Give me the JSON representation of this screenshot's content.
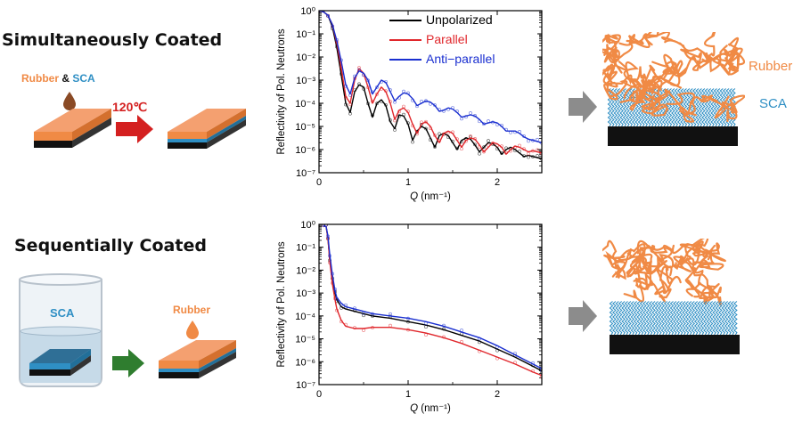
{
  "rows": [
    {
      "title": "Simultaneously Coated",
      "materials": {
        "rubber": "Rubber",
        "amp": "&",
        "sca": "SCA"
      },
      "temperature": "120℃"
    },
    {
      "title": "Sequentially Coated",
      "beaker_label": "SCA",
      "drop_label": "Rubber"
    }
  ],
  "structure_labels": {
    "rubber": "Rubber",
    "sca": "SCA"
  },
  "colors": {
    "rubber": "#f08a45",
    "sca": "#2f8fc4",
    "substrate": "#111111",
    "arrow_red": "#d42020",
    "arrow_green": "#2f7d2f",
    "arrow_gray": "#8c8c8c",
    "unpolarized": "#000000",
    "parallel": "#e0262b",
    "antiparallel": "#1a2fd0"
  },
  "chart_data": [
    {
      "type": "line",
      "xlabel_var": "Q",
      "xlabel_unit": "(nm⁻¹)",
      "ylabel": "Reflectivity of Pol. Neutrons",
      "xlim": [
        0,
        2.5
      ],
      "ylim_log10": [
        -7,
        0
      ],
      "x_ticks": [
        "0",
        "1",
        "2"
      ],
      "y_ticks": [
        "10⁰",
        "10⁻¹",
        "10⁻²",
        "10⁻³",
        "10⁻⁴",
        "10⁻⁵",
        "10⁻⁶",
        "10⁻⁷"
      ],
      "legend": [
        "Unpolarized",
        "Parallel",
        "Anti−parallel"
      ],
      "series": [
        {
          "name": "Unpolarized",
          "x": [
            0,
            0.05,
            0.1,
            0.15,
            0.2,
            0.25,
            0.3,
            0.35,
            0.4,
            0.45,
            0.5,
            0.55,
            0.6,
            0.65,
            0.7,
            0.75,
            0.8,
            0.85,
            0.9,
            0.95,
            1.0,
            1.05,
            1.1,
            1.15,
            1.2,
            1.25,
            1.3,
            1.35,
            1.4,
            1.45,
            1.5,
            1.55,
            1.6,
            1.65,
            1.7,
            1.75,
            1.8,
            1.85,
            1.9,
            1.95,
            2.0,
            2.05,
            2.1,
            2.15,
            2.2,
            2.25,
            2.3,
            2.35,
            2.4,
            2.45,
            2.5
          ],
          "log10y": [
            0.0,
            -0.05,
            -0.2,
            -0.7,
            -1.6,
            -2.8,
            -4.0,
            -4.4,
            -3.5,
            -3.2,
            -3.3,
            -4.0,
            -4.6,
            -4.0,
            -3.85,
            -4.1,
            -4.8,
            -5.1,
            -4.5,
            -4.55,
            -4.9,
            -5.6,
            -5.2,
            -5.0,
            -5.1,
            -5.5,
            -5.9,
            -5.4,
            -5.3,
            -5.4,
            -5.7,
            -6.0,
            -5.6,
            -5.5,
            -5.55,
            -5.8,
            -6.1,
            -5.9,
            -5.7,
            -5.75,
            -5.9,
            -6.2,
            -6.0,
            -5.9,
            -6.0,
            -6.15,
            -6.3,
            -6.25,
            -6.3,
            -6.35,
            -6.4
          ]
        },
        {
          "name": "Parallel",
          "x": [
            0,
            0.05,
            0.1,
            0.15,
            0.2,
            0.25,
            0.3,
            0.35,
            0.4,
            0.45,
            0.5,
            0.55,
            0.6,
            0.65,
            0.7,
            0.75,
            0.8,
            0.85,
            0.9,
            0.95,
            1.0,
            1.05,
            1.1,
            1.15,
            1.2,
            1.25,
            1.3,
            1.35,
            1.4,
            1.45,
            1.5,
            1.55,
            1.6,
            1.65,
            1.7,
            1.75,
            1.8,
            1.85,
            1.9,
            1.95,
            2.0,
            2.05,
            2.1,
            2.15,
            2.2,
            2.25,
            2.3,
            2.35,
            2.4,
            2.45,
            2.5
          ],
          "log10y": [
            0.0,
            -0.05,
            -0.2,
            -0.6,
            -1.4,
            -2.5,
            -3.7,
            -4.0,
            -3.0,
            -2.5,
            -2.7,
            -3.3,
            -4.0,
            -3.6,
            -3.3,
            -3.5,
            -4.0,
            -4.7,
            -4.3,
            -4.2,
            -4.4,
            -4.9,
            -5.3,
            -4.9,
            -4.8,
            -5.0,
            -5.4,
            -5.7,
            -5.3,
            -5.2,
            -5.3,
            -5.6,
            -5.9,
            -5.6,
            -5.5,
            -5.55,
            -5.8,
            -6.1,
            -5.9,
            -5.7,
            -5.75,
            -5.9,
            -6.2,
            -6.0,
            -5.85,
            -5.9,
            -6.0,
            -6.1,
            -6.05,
            -6.1,
            -6.15
          ]
        },
        {
          "name": "Anti−parallel",
          "x": [
            0,
            0.05,
            0.1,
            0.15,
            0.2,
            0.25,
            0.3,
            0.35,
            0.4,
            0.45,
            0.5,
            0.55,
            0.6,
            0.65,
            0.7,
            0.75,
            0.8,
            0.85,
            0.9,
            0.95,
            1.0,
            1.05,
            1.1,
            1.15,
            1.2,
            1.25,
            1.3,
            1.35,
            1.4,
            1.45,
            1.5,
            1.55,
            1.6,
            1.65,
            1.7,
            1.75,
            1.8,
            1.85,
            1.9,
            1.95,
            2.0,
            2.05,
            2.1,
            2.15,
            2.2,
            2.25,
            2.3,
            2.35,
            2.4,
            2.45,
            2.5
          ],
          "log10y": [
            0.0,
            -0.05,
            -0.2,
            -0.6,
            -1.3,
            -2.2,
            -3.2,
            -3.6,
            -2.9,
            -2.6,
            -2.7,
            -3.0,
            -3.6,
            -3.3,
            -3.0,
            -3.1,
            -3.5,
            -3.9,
            -3.7,
            -3.55,
            -3.6,
            -3.8,
            -4.1,
            -4.0,
            -3.9,
            -3.95,
            -4.1,
            -4.35,
            -4.3,
            -4.2,
            -4.25,
            -4.4,
            -4.6,
            -4.55,
            -4.5,
            -4.55,
            -4.7,
            -4.9,
            -4.85,
            -4.8,
            -4.85,
            -5.0,
            -5.2,
            -5.2,
            -5.2,
            -5.3,
            -5.45,
            -5.55,
            -5.6,
            -5.65,
            -5.7
          ]
        }
      ]
    },
    {
      "type": "line",
      "xlabel_var": "Q",
      "xlabel_unit": "(nm⁻¹)",
      "ylabel": "Reflectivity of Pol. Neutrons",
      "xlim": [
        0,
        2.5
      ],
      "ylim_log10": [
        -7,
        0
      ],
      "x_ticks": [
        "0",
        "1",
        "2"
      ],
      "y_ticks": [
        "10⁰",
        "10⁻¹",
        "10⁻²",
        "10⁻³",
        "10⁻⁴",
        "10⁻⁵",
        "10⁻⁶",
        "10⁻⁷"
      ],
      "legend": [],
      "series": [
        {
          "name": "Unpolarized",
          "x": [
            0.05,
            0.08,
            0.1,
            0.12,
            0.15,
            0.18,
            0.2,
            0.25,
            0.3,
            0.4,
            0.5,
            0.6,
            0.8,
            1.0,
            1.2,
            1.4,
            1.6,
            1.8,
            2.0,
            2.2,
            2.4,
            2.5
          ],
          "log10y": [
            -0.05,
            -0.1,
            -0.6,
            -1.5,
            -2.4,
            -3.0,
            -3.3,
            -3.6,
            -3.7,
            -3.8,
            -3.9,
            -4.0,
            -4.1,
            -4.25,
            -4.4,
            -4.6,
            -4.85,
            -5.1,
            -5.45,
            -5.8,
            -6.2,
            -6.4
          ]
        },
        {
          "name": "Parallel",
          "x": [
            0.05,
            0.08,
            0.1,
            0.12,
            0.15,
            0.18,
            0.2,
            0.25,
            0.3,
            0.4,
            0.5,
            0.6,
            0.8,
            1.0,
            1.2,
            1.4,
            1.6,
            1.8,
            2.0,
            2.2,
            2.4,
            2.5
          ],
          "log10y": [
            -0.05,
            -0.1,
            -0.6,
            -1.6,
            -2.6,
            -3.3,
            -3.7,
            -4.2,
            -4.45,
            -4.55,
            -4.55,
            -4.5,
            -4.5,
            -4.6,
            -4.75,
            -4.95,
            -5.2,
            -5.5,
            -5.8,
            -6.1,
            -6.45,
            -6.6
          ]
        },
        {
          "name": "Anti−parallel",
          "x": [
            0.05,
            0.08,
            0.1,
            0.12,
            0.15,
            0.18,
            0.2,
            0.25,
            0.3,
            0.4,
            0.5,
            0.6,
            0.8,
            1.0,
            1.2,
            1.4,
            1.6,
            1.8,
            2.0,
            2.2,
            2.4,
            2.5
          ],
          "log10y": [
            -0.05,
            -0.1,
            -0.5,
            -1.3,
            -2.2,
            -2.9,
            -3.2,
            -3.45,
            -3.6,
            -3.7,
            -3.8,
            -3.9,
            -4.0,
            -4.1,
            -4.25,
            -4.45,
            -4.7,
            -4.95,
            -5.3,
            -5.7,
            -6.1,
            -6.3
          ]
        }
      ]
    }
  ]
}
